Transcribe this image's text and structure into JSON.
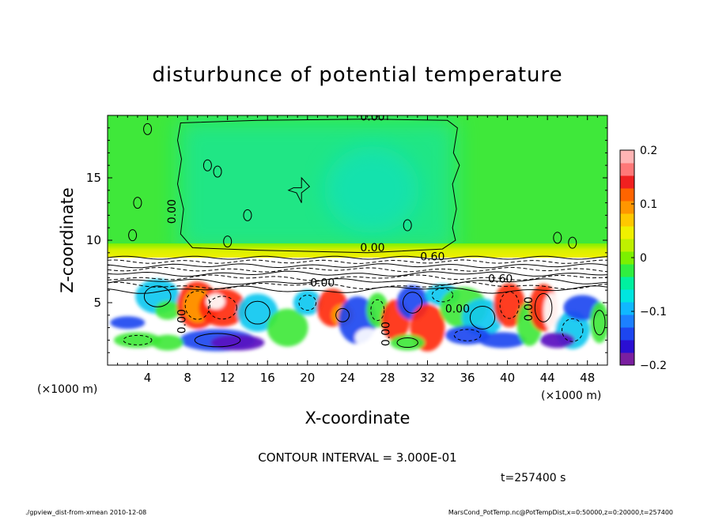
{
  "chart_data": {
    "type": "heatmap",
    "title": "disturbunce of potential temperature",
    "xlabel": "X-coordinate",
    "ylabel": "Z-coordinate",
    "x_unit_left": "(×1000 m)",
    "x_unit_right": "(×1000 m)",
    "xlim": [
      0,
      50
    ],
    "ylim": [
      0,
      20
    ],
    "x_ticks": [
      4,
      8,
      12,
      16,
      20,
      24,
      28,
      32,
      36,
      40,
      44,
      48
    ],
    "y_ticks": [
      5,
      10,
      15
    ],
    "colorbar": {
      "range": [
        -0.2,
        0.2
      ],
      "ticks": [
        0.2,
        0.1,
        0,
        -0.1,
        -0.2
      ],
      "tick_labels": [
        "0.2",
        "0.1",
        "0",
        "−0.1",
        "−0.2"
      ],
      "colors": [
        "#7a1fa0",
        "#2a0fd2",
        "#1d46f0",
        "#1c80ff",
        "#10b8ff",
        "#00e6e0",
        "#00f0a0",
        "#30ee40",
        "#7cf000",
        "#bff000",
        "#f0f000",
        "#ffc800",
        "#ff9600",
        "#ff6400",
        "#f02020",
        "#ff7878",
        "#ffb4b4"
      ]
    },
    "contour_labels": [
      {
        "text": "0.00",
        "x": 26.5,
        "z": 19.6
      },
      {
        "text": "0.00",
        "x": 6.8,
        "z": 12.3
      },
      {
        "text": "0.00",
        "x": 26.5,
        "z": 9.1
      },
      {
        "text": "0.60",
        "x": 32.5,
        "z": 8.4
      },
      {
        "text": "0.60",
        "x": 39.3,
        "z": 6.6
      },
      {
        "text": "0.00",
        "x": 21.5,
        "z": 6.3
      },
      {
        "text": "0.00",
        "x": 35.0,
        "z": 4.2
      },
      {
        "text": "0.00",
        "x": 7.8,
        "z": 3.5
      },
      {
        "text": "0.00",
        "x": 28.2,
        "z": 2.5
      },
      {
        "text": "0.00",
        "x": 42.5,
        "z": 4.5
      }
    ],
    "contour_interval_label": "CONTOUR INTERVAL = 3.000E-01",
    "time_label": "t=257400 s"
  },
  "footer": {
    "left": "./gpview_dist-from-xmean  2010-12-08",
    "right": "MarsCond_PotTemp.nc@PotTempDist,x=0:50000,z=0:20000,t=257400"
  }
}
